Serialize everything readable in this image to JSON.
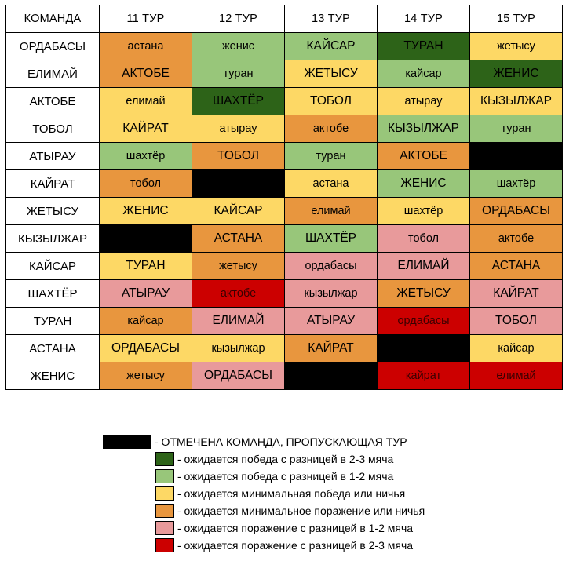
{
  "colors": {
    "bye": "#000000",
    "dark_green": "#2d6318",
    "light_green": "#98c67a",
    "yellow": "#fdd865",
    "orange": "#e8963e",
    "pink": "#e89a9b",
    "red": "#cc0000"
  },
  "table": {
    "headers": [
      "КОМАНДА",
      "11 ТУР",
      "12 ТУР",
      "13 ТУР",
      "14 ТУР",
      "15 ТУР"
    ],
    "rows": [
      {
        "team": "ОРДАБАСЫ",
        "cells": [
          {
            "text": "астана",
            "color": "orange"
          },
          {
            "text": "женис",
            "color": "light_green"
          },
          {
            "text": "КАЙСАР",
            "color": "light_green"
          },
          {
            "text": "ТУРАН",
            "color": "dark_green"
          },
          {
            "text": "жетысу",
            "color": "yellow"
          }
        ]
      },
      {
        "team": "ЕЛИМАЙ",
        "cells": [
          {
            "text": "АКТОБЕ",
            "color": "orange"
          },
          {
            "text": "туран",
            "color": "light_green"
          },
          {
            "text": "ЖЕТЫСУ",
            "color": "yellow"
          },
          {
            "text": "кайсар",
            "color": "light_green"
          },
          {
            "text": "ЖЕНИС",
            "color": "dark_green"
          }
        ]
      },
      {
        "team": "АКТОБЕ",
        "cells": [
          {
            "text": "елимай",
            "color": "yellow"
          },
          {
            "text": "ШАХТЁР",
            "color": "dark_green"
          },
          {
            "text": "ТОБОЛ",
            "color": "yellow"
          },
          {
            "text": "атырау",
            "color": "yellow"
          },
          {
            "text": "КЫЗЫЛЖАР",
            "color": "yellow"
          }
        ]
      },
      {
        "team": "ТОБОЛ",
        "cells": [
          {
            "text": "КАЙРАТ",
            "color": "yellow"
          },
          {
            "text": "атырау",
            "color": "yellow"
          },
          {
            "text": "актобе",
            "color": "orange"
          },
          {
            "text": "КЫЗЫЛЖАР",
            "color": "light_green"
          },
          {
            "text": "туран",
            "color": "light_green"
          }
        ]
      },
      {
        "team": "АТЫРАУ",
        "cells": [
          {
            "text": "шахтёр",
            "color": "light_green"
          },
          {
            "text": "ТОБОЛ",
            "color": "orange"
          },
          {
            "text": "туран",
            "color": "light_green"
          },
          {
            "text": "АКТОБЕ",
            "color": "orange"
          },
          {
            "text": "",
            "color": "bye"
          }
        ]
      },
      {
        "team": "КАЙРАТ",
        "cells": [
          {
            "text": "тобол",
            "color": "orange"
          },
          {
            "text": "",
            "color": "bye"
          },
          {
            "text": "астана",
            "color": "yellow"
          },
          {
            "text": "ЖЕНИС",
            "color": "light_green"
          },
          {
            "text": "шахтёр",
            "color": "light_green"
          }
        ]
      },
      {
        "team": "ЖЕТЫСУ",
        "cells": [
          {
            "text": "ЖЕНИС",
            "color": "yellow"
          },
          {
            "text": "КАЙСАР",
            "color": "yellow"
          },
          {
            "text": "елимай",
            "color": "orange"
          },
          {
            "text": "шахтёр",
            "color": "yellow"
          },
          {
            "text": "ОРДАБАСЫ",
            "color": "orange"
          }
        ]
      },
      {
        "team": "КЫЗЫЛЖАР",
        "cells": [
          {
            "text": "",
            "color": "bye"
          },
          {
            "text": "АСТАНА",
            "color": "orange"
          },
          {
            "text": "ШАХТЁР",
            "color": "light_green"
          },
          {
            "text": "тобол",
            "color": "pink"
          },
          {
            "text": "актобе",
            "color": "orange"
          }
        ]
      },
      {
        "team": "КАЙСАР",
        "cells": [
          {
            "text": "ТУРАН",
            "color": "yellow"
          },
          {
            "text": "жетысу",
            "color": "orange"
          },
          {
            "text": "ордабасы",
            "color": "pink"
          },
          {
            "text": "ЕЛИМАЙ",
            "color": "pink"
          },
          {
            "text": "АСТАНА",
            "color": "orange"
          }
        ]
      },
      {
        "team": "ШАХТЁР",
        "cells": [
          {
            "text": "АТЫРАУ",
            "color": "pink"
          },
          {
            "text": "актобе",
            "color": "red"
          },
          {
            "text": "кызылжар",
            "color": "pink"
          },
          {
            "text": "ЖЕТЫСУ",
            "color": "orange"
          },
          {
            "text": "КАЙРАТ",
            "color": "pink"
          }
        ]
      },
      {
        "team": "ТУРАН",
        "cells": [
          {
            "text": "кайсар",
            "color": "orange"
          },
          {
            "text": "ЕЛИМАЙ",
            "color": "pink"
          },
          {
            "text": "АТЫРАУ",
            "color": "pink"
          },
          {
            "text": "ордабасы",
            "color": "red"
          },
          {
            "text": "ТОБОЛ",
            "color": "pink"
          }
        ]
      },
      {
        "team": "АСТАНА",
        "cells": [
          {
            "text": "ОРДАБАСЫ",
            "color": "yellow"
          },
          {
            "text": "кызылжар",
            "color": "yellow"
          },
          {
            "text": "КАЙРАТ",
            "color": "orange"
          },
          {
            "text": "",
            "color": "bye"
          },
          {
            "text": "кайсар",
            "color": "yellow"
          }
        ]
      },
      {
        "team": "ЖЕНИС",
        "cells": [
          {
            "text": "жетысу",
            "color": "orange"
          },
          {
            "text": "ОРДАБАСЫ",
            "color": "pink"
          },
          {
            "text": "",
            "color": "bye"
          },
          {
            "text": "кайрат",
            "color": "red"
          },
          {
            "text": "елимай",
            "color": "red"
          }
        ]
      }
    ]
  },
  "legend": [
    {
      "color": "bye",
      "text": "- ОТМЕЧЕНА КОМАНДА, ПРОПУСКАЮЩАЯ ТУР"
    },
    {
      "color": "dark_green",
      "text": "- ожидается победа с разницей в 2-3 мяча"
    },
    {
      "color": "light_green",
      "text": "- ожидается победа с разницей в 1-2 мяча"
    },
    {
      "color": "yellow",
      "text": "- ожидается минимальная победа или ничья"
    },
    {
      "color": "orange",
      "text": "- ожидается минимальное поражение или ничья"
    },
    {
      "color": "pink",
      "text": "- ожидается поражение с разницей в 1-2 мяча"
    },
    {
      "color": "red",
      "text": "- ожидается поражение с разницей в 2-3 мяча"
    }
  ]
}
